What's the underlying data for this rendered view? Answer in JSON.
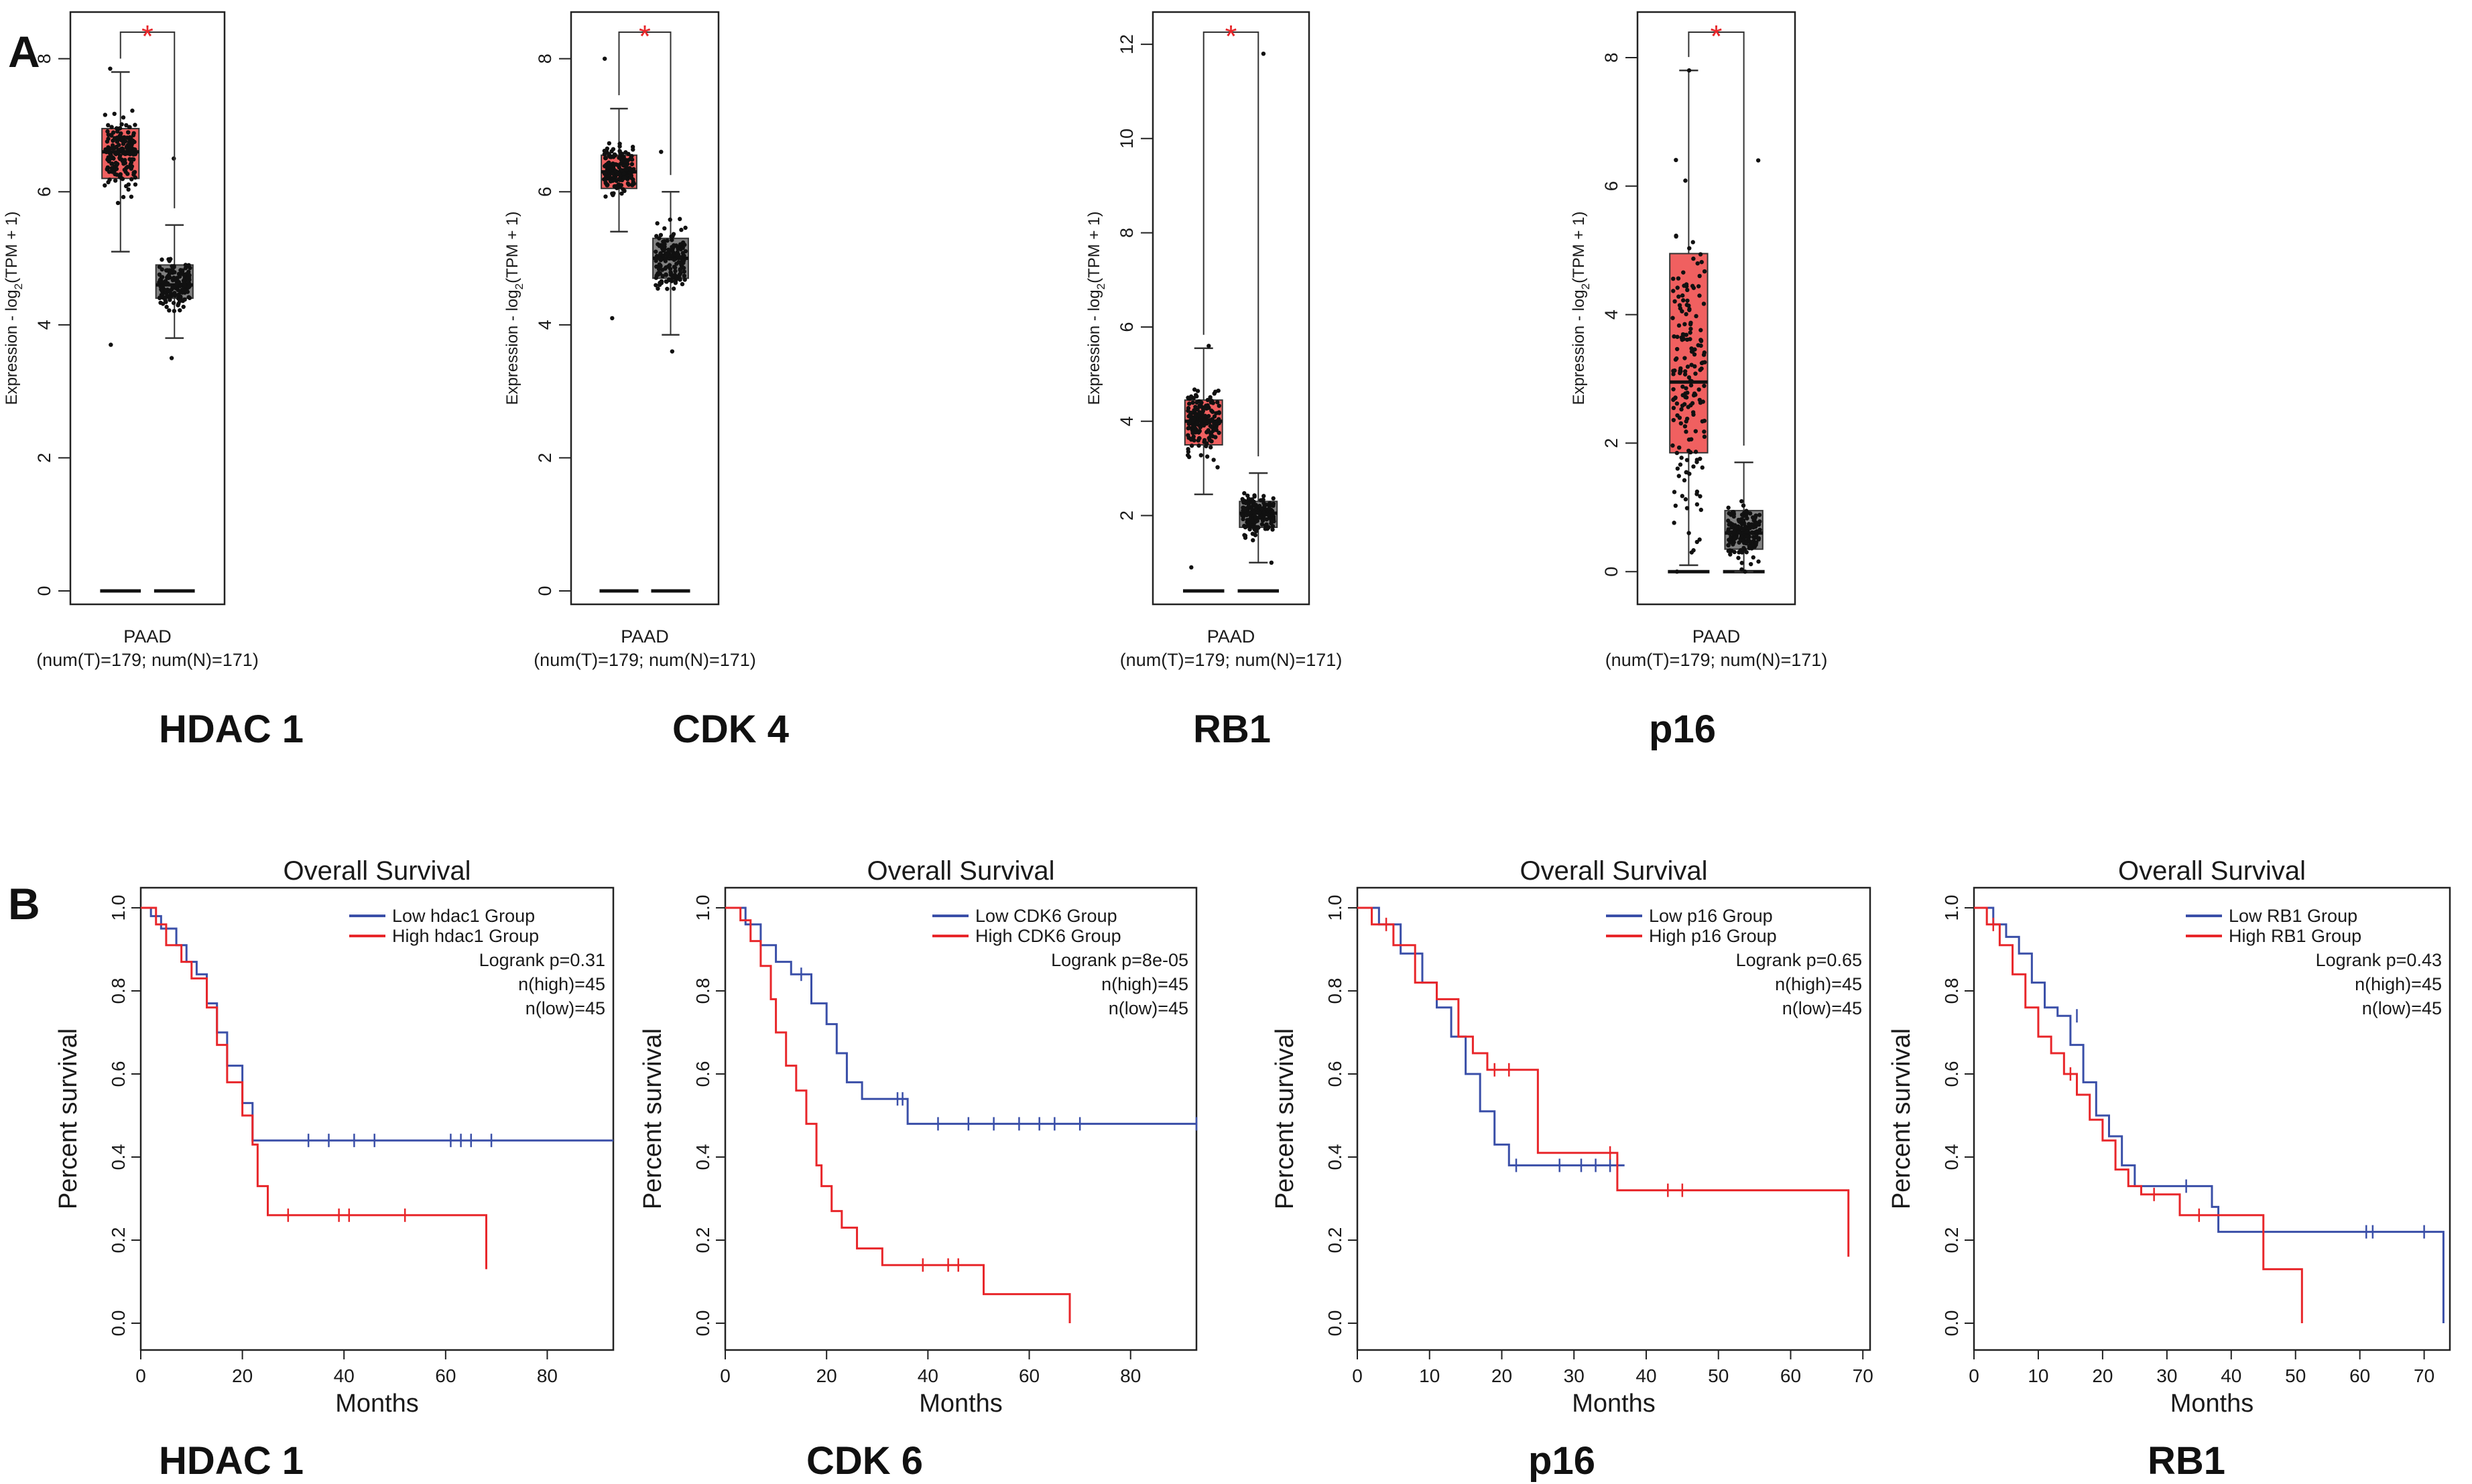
{
  "panel_labels": {
    "a": "A",
    "b": "B"
  },
  "chart_data": [
    {
      "type": "box",
      "gene": "HDAC 1",
      "ylabel_prefix": "Expression - log",
      "ylabel_sub": "2",
      "ylabel_suffix": "(TPM + 1)",
      "xlabel": "PAAD",
      "xlabel2": "(num(T)=179; num(N)=171)",
      "ylim": [
        0,
        8.5
      ],
      "yticks": [
        "0",
        "2",
        "4",
        "6",
        "8"
      ],
      "yticks_values": [
        0,
        2,
        4,
        6,
        8
      ],
      "sig": "*",
      "groups": [
        {
          "name": "T",
          "color": "#f06060",
          "q1": 6.2,
          "median": 6.6,
          "q3": 6.95,
          "wlow": 5.1,
          "whigh": 7.8,
          "pmin": 3.7,
          "pmax": 7.85
        },
        {
          "name": "N",
          "color": "#808080",
          "q1": 4.4,
          "median": 4.6,
          "q3": 4.9,
          "wlow": 3.8,
          "whigh": 5.5,
          "pmin": 3.5,
          "pmax": 6.5
        }
      ]
    },
    {
      "type": "box",
      "gene": "CDK 4",
      "ylabel_prefix": "Expression - log",
      "ylabel_sub": "2",
      "ylabel_suffix": "(TPM + 1)",
      "xlabel": "PAAD",
      "xlabel2": "(num(T)=179; num(N)=171)",
      "ylim": [
        0,
        8.5
      ],
      "yticks": [
        "0",
        "2",
        "4",
        "6",
        "8"
      ],
      "yticks_values": [
        0,
        2,
        4,
        6,
        8
      ],
      "sig": "*",
      "groups": [
        {
          "name": "T",
          "color": "#f06060",
          "q1": 6.05,
          "median": 6.3,
          "q3": 6.55,
          "wlow": 5.4,
          "whigh": 7.25,
          "pmin": 4.1,
          "pmax": 8.0
        },
        {
          "name": "N",
          "color": "#808080",
          "q1": 4.7,
          "median": 5.0,
          "q3": 5.3,
          "wlow": 3.85,
          "whigh": 6.0,
          "pmin": 3.6,
          "pmax": 6.6
        }
      ]
    },
    {
      "type": "box",
      "gene": "RB1",
      "ylabel_prefix": "Expression - log",
      "ylabel_sub": "2",
      "ylabel_suffix": "(TPM + 1)",
      "xlabel": "PAAD",
      "xlabel2": "(num(T)=179; num(N)=171)",
      "ylim": [
        0.4,
        12.4
      ],
      "yticks": [
        "2",
        "4",
        "6",
        "8",
        "10",
        "12"
      ],
      "yticks_values": [
        2,
        4,
        6,
        8,
        10,
        12
      ],
      "sig": "*",
      "groups": [
        {
          "name": "T",
          "color": "#f06060",
          "q1": 3.5,
          "median": 4.0,
          "q3": 4.45,
          "wlow": 2.45,
          "whigh": 5.55,
          "pmin": 0.9,
          "pmax": 5.6
        },
        {
          "name": "N",
          "color": "#808080",
          "q1": 1.75,
          "median": 2.05,
          "q3": 2.3,
          "wlow": 1.0,
          "whigh": 2.9,
          "pmin": 1.0,
          "pmax": 11.8
        }
      ]
    },
    {
      "type": "box",
      "gene": "p16",
      "ylabel_prefix": "Expression - log",
      "ylabel_sub": "2",
      "ylabel_suffix": "(TPM + 1)",
      "xlabel": "PAAD",
      "xlabel2": "(num(T)=179; num(N)=171)",
      "ylim": [
        -0.3,
        8.5
      ],
      "yticks": [
        "0",
        "2",
        "4",
        "6",
        "8"
      ],
      "yticks_values": [
        0,
        2,
        4,
        6,
        8
      ],
      "sig": "*",
      "groups": [
        {
          "name": "T",
          "color": "#f06060",
          "q1": 1.85,
          "median": 2.95,
          "q3": 4.95,
          "wlow": 0.1,
          "whigh": 7.8,
          "pmin": 0.0,
          "pmax": 7.8
        },
        {
          "name": "N",
          "color": "#808080",
          "q1": 0.35,
          "median": 0.6,
          "q3": 0.95,
          "wlow": 0.0,
          "whigh": 1.7,
          "pmin": 0.0,
          "pmax": 6.4
        }
      ]
    },
    {
      "type": "line",
      "gene": "HDAC 1",
      "title": "Overall Survival",
      "xlabel": "Months",
      "ylabel": "Percent survival",
      "xlim": [
        0,
        93
      ],
      "ylim": [
        0,
        1
      ],
      "xticks": [
        "0",
        "20",
        "40",
        "60",
        "80"
      ],
      "xticks_values": [
        0,
        20,
        40,
        60,
        80
      ],
      "yticks": [
        "0.0",
        "0.2",
        "0.4",
        "0.6",
        "0.8",
        "1.0"
      ],
      "yticks_values": [
        0,
        0.2,
        0.4,
        0.6,
        0.8,
        1.0
      ],
      "legend": [
        {
          "label": "Low hdac1 Group",
          "color": "#3a4fa8"
        },
        {
          "label": "High hdac1 Group",
          "color": "#e8262a"
        }
      ],
      "stats": [
        "Logrank p=0.31",
        "n(high)=45",
        "n(low)=45"
      ],
      "series": [
        {
          "name": "Low",
          "color": "#3a4fa8",
          "steps": [
            [
              0,
              1.0
            ],
            [
              2,
              0.98
            ],
            [
              4,
              0.95
            ],
            [
              7,
              0.91
            ],
            [
              9,
              0.87
            ],
            [
              11,
              0.84
            ],
            [
              13,
              0.77
            ],
            [
              15,
              0.7
            ],
            [
              17,
              0.62
            ],
            [
              20,
              0.53
            ],
            [
              22,
              0.44
            ],
            [
              93,
              0.44
            ]
          ],
          "censors": [
            [
              33,
              0.44
            ],
            [
              37,
              0.44
            ],
            [
              42,
              0.44
            ],
            [
              46,
              0.44
            ],
            [
              61,
              0.44
            ],
            [
              63,
              0.44
            ],
            [
              65,
              0.44
            ],
            [
              69,
              0.44
            ]
          ]
        },
        {
          "name": "High",
          "color": "#e8262a",
          "steps": [
            [
              0,
              1.0
            ],
            [
              3,
              0.96
            ],
            [
              5,
              0.91
            ],
            [
              8,
              0.87
            ],
            [
              10,
              0.83
            ],
            [
              13,
              0.76
            ],
            [
              15,
              0.67
            ],
            [
              17,
              0.58
            ],
            [
              20,
              0.5
            ],
            [
              22,
              0.43
            ],
            [
              23,
              0.33
            ],
            [
              25,
              0.26
            ],
            [
              68,
              0.26
            ],
            [
              68,
              0.13
            ]
          ],
          "censors": [
            [
              29,
              0.26
            ],
            [
              39,
              0.26
            ],
            [
              41,
              0.26
            ],
            [
              52,
              0.26
            ]
          ]
        }
      ]
    },
    {
      "type": "line",
      "gene": "CDK 6",
      "title": "Overall Survival",
      "xlabel": "Months",
      "ylabel": "Percent survival",
      "xlim": [
        0,
        93
      ],
      "ylim": [
        0,
        1
      ],
      "xticks": [
        "0",
        "20",
        "40",
        "60",
        "80"
      ],
      "xticks_values": [
        0,
        20,
        40,
        60,
        80
      ],
      "yticks": [
        "0.0",
        "0.2",
        "0.4",
        "0.6",
        "0.8",
        "1.0"
      ],
      "yticks_values": [
        0,
        0.2,
        0.4,
        0.6,
        0.8,
        1.0
      ],
      "legend": [
        {
          "label": "Low CDK6 Group",
          "color": "#3a4fa8"
        },
        {
          "label": "High CDK6 Group",
          "color": "#e8262a"
        }
      ],
      "stats": [
        "Logrank p=8e-05",
        "n(high)=45",
        "n(low)=45"
      ],
      "series": [
        {
          "name": "Low",
          "color": "#3a4fa8",
          "steps": [
            [
              0,
              1.0
            ],
            [
              4,
              0.96
            ],
            [
              7,
              0.91
            ],
            [
              10,
              0.87
            ],
            [
              13,
              0.84
            ],
            [
              17,
              0.77
            ],
            [
              20,
              0.72
            ],
            [
              22,
              0.65
            ],
            [
              24,
              0.58
            ],
            [
              27,
              0.54
            ],
            [
              36,
              0.48
            ],
            [
              93,
              0.48
            ]
          ],
          "censors": [
            [
              15,
              0.84
            ],
            [
              24,
              0.6
            ],
            [
              34,
              0.54
            ],
            [
              35,
              0.54
            ],
            [
              42,
              0.48
            ],
            [
              48,
              0.48
            ],
            [
              53,
              0.48
            ],
            [
              58,
              0.48
            ],
            [
              62,
              0.48
            ],
            [
              65,
              0.48
            ],
            [
              70,
              0.48
            ],
            [
              93,
              0.48
            ]
          ]
        },
        {
          "name": "High",
          "color": "#e8262a",
          "steps": [
            [
              0,
              1.0
            ],
            [
              3,
              0.97
            ],
            [
              5,
              0.92
            ],
            [
              7,
              0.86
            ],
            [
              9,
              0.78
            ],
            [
              10,
              0.7
            ],
            [
              12,
              0.62
            ],
            [
              14,
              0.56
            ],
            [
              16,
              0.48
            ],
            [
              18,
              0.38
            ],
            [
              19,
              0.33
            ],
            [
              21,
              0.27
            ],
            [
              23,
              0.23
            ],
            [
              26,
              0.18
            ],
            [
              31,
              0.14
            ],
            [
              51,
              0.07
            ],
            [
              68,
              0.0
            ]
          ],
          "censors": [
            [
              39,
              0.14
            ],
            [
              44,
              0.14
            ],
            [
              46,
              0.14
            ]
          ]
        }
      ]
    },
    {
      "type": "line",
      "gene": "p16",
      "title": "Overall Survival",
      "xlabel": "Months",
      "ylabel": "Percent survival",
      "xlim": [
        0,
        71
      ],
      "ylim": [
        0,
        1
      ],
      "xticks": [
        "0",
        "10",
        "20",
        "30",
        "40",
        "50",
        "60",
        "70"
      ],
      "xticks_values": [
        0,
        10,
        20,
        30,
        40,
        50,
        60,
        70
      ],
      "yticks": [
        "0.0",
        "0.2",
        "0.4",
        "0.6",
        "0.8",
        "1.0"
      ],
      "yticks_values": [
        0,
        0.2,
        0.4,
        0.6,
        0.8,
        1.0
      ],
      "legend": [
        {
          "label": "Low p16 Group",
          "color": "#3a4fa8"
        },
        {
          "label": "High p16 Group",
          "color": "#e8262a"
        }
      ],
      "stats": [
        "Logrank p=0.65",
        "n(high)=45",
        "n(low)=45"
      ],
      "series": [
        {
          "name": "Low",
          "color": "#3a4fa8",
          "steps": [
            [
              0,
              1.0
            ],
            [
              3,
              0.96
            ],
            [
              6,
              0.89
            ],
            [
              9,
              0.82
            ],
            [
              11,
              0.76
            ],
            [
              13,
              0.69
            ],
            [
              15,
              0.6
            ],
            [
              17,
              0.51
            ],
            [
              19,
              0.43
            ],
            [
              21,
              0.38
            ],
            [
              37,
              0.38
            ]
          ],
          "censors": [
            [
              22,
              0.38
            ],
            [
              28,
              0.38
            ],
            [
              31,
              0.38
            ],
            [
              33,
              0.38
            ],
            [
              35,
              0.38
            ],
            [
              36,
              0.38
            ]
          ]
        },
        {
          "name": "High",
          "color": "#e8262a",
          "steps": [
            [
              0,
              1.0
            ],
            [
              2,
              0.96
            ],
            [
              5,
              0.91
            ],
            [
              8,
              0.82
            ],
            [
              11,
              0.78
            ],
            [
              14,
              0.69
            ],
            [
              16,
              0.65
            ],
            [
              18,
              0.61
            ],
            [
              23,
              0.61
            ],
            [
              25,
              0.41
            ],
            [
              36,
              0.41
            ],
            [
              36,
              0.32
            ],
            [
              68,
              0.32
            ],
            [
              68,
              0.16
            ]
          ],
          "censors": [
            [
              4,
              0.96
            ],
            [
              19,
              0.61
            ],
            [
              21,
              0.61
            ],
            [
              35,
              0.41
            ],
            [
              43,
              0.32
            ],
            [
              45,
              0.32
            ]
          ]
        }
      ]
    },
    {
      "type": "line",
      "gene": "RB1",
      "title": "Overall Survival",
      "xlabel": "Months",
      "ylabel": "Percent survival",
      "xlim": [
        0,
        74
      ],
      "ylim": [
        0,
        1
      ],
      "xticks": [
        "0",
        "10",
        "20",
        "30",
        "40",
        "50",
        "60",
        "70"
      ],
      "xticks_values": [
        0,
        10,
        20,
        30,
        40,
        50,
        60,
        70
      ],
      "yticks": [
        "0.0",
        "0.2",
        "0.4",
        "0.6",
        "0.8",
        "1.0"
      ],
      "yticks_values": [
        0,
        0.2,
        0.4,
        0.6,
        0.8,
        1.0
      ],
      "legend": [
        {
          "label": "Low RB1 Group",
          "color": "#3a4fa8"
        },
        {
          "label": "High RB1 Group",
          "color": "#e8262a"
        }
      ],
      "stats": [
        "Logrank p=0.43",
        "n(high)=45",
        "n(low)=45"
      ],
      "series": [
        {
          "name": "Low",
          "color": "#3a4fa8",
          "steps": [
            [
              0,
              1.0
            ],
            [
              3,
              0.96
            ],
            [
              5,
              0.93
            ],
            [
              7,
              0.89
            ],
            [
              9,
              0.82
            ],
            [
              11,
              0.76
            ],
            [
              13,
              0.74
            ],
            [
              15,
              0.67
            ],
            [
              17,
              0.58
            ],
            [
              19,
              0.5
            ],
            [
              21,
              0.45
            ],
            [
              23,
              0.38
            ],
            [
              25,
              0.33
            ],
            [
              37,
              0.28
            ],
            [
              38,
              0.22
            ],
            [
              73,
              0.22
            ],
            [
              73,
              0.0
            ]
          ],
          "censors": [
            [
              16,
              0.74
            ],
            [
              33,
              0.33
            ],
            [
              61,
              0.22
            ],
            [
              62,
              0.22
            ],
            [
              70,
              0.22
            ]
          ]
        },
        {
          "name": "High",
          "color": "#e8262a",
          "steps": [
            [
              0,
              1.0
            ],
            [
              2,
              0.96
            ],
            [
              4,
              0.91
            ],
            [
              6,
              0.84
            ],
            [
              8,
              0.76
            ],
            [
              10,
              0.69
            ],
            [
              12,
              0.65
            ],
            [
              14,
              0.6
            ],
            [
              16,
              0.55
            ],
            [
              18,
              0.49
            ],
            [
              20,
              0.44
            ],
            [
              22,
              0.37
            ],
            [
              24,
              0.33
            ],
            [
              26,
              0.31
            ],
            [
              32,
              0.26
            ],
            [
              45,
              0.13
            ],
            [
              51,
              0.0
            ]
          ],
          "censors": [
            [
              3,
              0.96
            ],
            [
              15,
              0.6
            ],
            [
              28,
              0.31
            ],
            [
              35,
              0.26
            ]
          ]
        }
      ]
    }
  ]
}
